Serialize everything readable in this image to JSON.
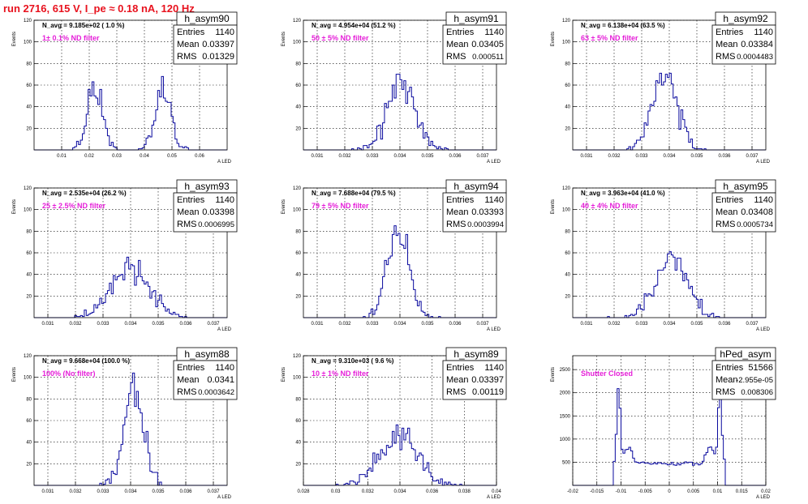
{
  "page_title": "run 2716,   615 V, I_pe ≈ 0.18 nA, 120 Hz",
  "chart_data": [
    {
      "type": "histogram",
      "name": "h_asym90",
      "entries": "1140",
      "mean": "0.03397",
      "rms": "0.01329",
      "navg": "N_avg = 9.185e+02 ( 1.0 %)",
      "filter": "1± 0.1% ND filter",
      "ylabel": "Events",
      "xlabel": "A_LED",
      "xlim": [
        0.0,
        0.07
      ],
      "ylim": [
        0,
        120
      ],
      "xticks": [
        "0.01",
        "0.02",
        "0.03",
        "0.04",
        "0.05",
        "0.06"
      ],
      "xtick_values": [
        0.01,
        0.02,
        0.03,
        0.04,
        0.05,
        0.06
      ],
      "yticks": [
        "20",
        "40",
        "60",
        "80",
        "100",
        "120"
      ],
      "ytick_values": [
        20,
        40,
        60,
        80,
        100,
        120
      ],
      "centers": [
        {
          "c": 0.0222,
          "s": 0.0028,
          "a": 38,
          "cnt": 570
        },
        {
          "c": 0.0468,
          "s": 0.0028,
          "a": 38,
          "cnt": 570
        }
      ],
      "seed": 11
    },
    {
      "type": "histogram",
      "name": "h_asym91",
      "entries": "1140",
      "mean": "0.03405",
      "rms": "0.000511",
      "navg": "N_avg = 4.954e+04 (51.2 %)",
      "filter": "50 ± 5% ND filter",
      "ylabel": "Events",
      "xlabel": "A_LED",
      "xlim": [
        0.0305,
        0.0375
      ],
      "ylim": [
        0,
        120
      ],
      "xticks": [
        "0.031",
        "0.032",
        "0.033",
        "0.034",
        "0.035",
        "0.036",
        "0.037"
      ],
      "xtick_values": [
        0.031,
        0.032,
        0.033,
        0.034,
        0.035,
        0.036,
        0.037
      ],
      "yticks": [
        "20",
        "40",
        "60",
        "80",
        "100",
        "120"
      ],
      "ytick_values": [
        20,
        40,
        60,
        80,
        100,
        120
      ],
      "centers": [
        {
          "c": 0.03405,
          "s": 0.000511,
          "a": 70,
          "cnt": 1140
        }
      ],
      "seed": 21
    },
    {
      "type": "histogram",
      "name": "h_asym92",
      "entries": "1140",
      "mean": "0.03384",
      "rms": "0.0004483",
      "navg": "N_avg = 6.138e+04 (63.5 %)",
      "filter": "63 ± 5% ND filter",
      "ylabel": "Events",
      "xlabel": "A_LED",
      "xlim": [
        0.0305,
        0.0375
      ],
      "ylim": [
        0,
        120
      ],
      "xticks": [
        "0.031",
        "0.032",
        "0.033",
        "0.034",
        "0.035",
        "0.036",
        "0.037"
      ],
      "xtick_values": [
        0.031,
        0.032,
        0.033,
        0.034,
        0.035,
        0.036,
        0.037
      ],
      "yticks": [
        "20",
        "40",
        "60",
        "80",
        "100",
        "120"
      ],
      "ytick_values": [
        20,
        40,
        60,
        80,
        100,
        120
      ],
      "centers": [
        {
          "c": 0.03384,
          "s": 0.000448,
          "a": 80,
          "cnt": 1140
        }
      ],
      "seed": 31
    },
    {
      "type": "histogram",
      "name": "h_asym93",
      "entries": "1140",
      "mean": "0.03398",
      "rms": "0.0006995",
      "navg": "N_avg = 2.535e+04 (26.2 %)",
      "filter": "25 ± 2.5% ND filter",
      "ylabel": "Events",
      "xlabel": "A_LED",
      "xlim": [
        0.0305,
        0.0375
      ],
      "ylim": [
        0,
        120
      ],
      "xticks": [
        "0.031",
        "0.032",
        "0.033",
        "0.034",
        "0.035",
        "0.036",
        "0.037"
      ],
      "xtick_values": [
        0.031,
        0.032,
        0.033,
        0.034,
        0.035,
        0.036,
        0.037
      ],
      "yticks": [
        "20",
        "40",
        "60",
        "80",
        "100",
        "120"
      ],
      "ytick_values": [
        20,
        40,
        60,
        80,
        100,
        120
      ],
      "centers": [
        {
          "c": 0.03398,
          "s": 0.0007,
          "a": 58,
          "cnt": 1140
        }
      ],
      "seed": 41
    },
    {
      "type": "histogram",
      "name": "h_asym94",
      "entries": "1140",
      "mean": "0.03393",
      "rms": "0.0003994",
      "navg": "N_avg = 7.688e+04 (79.5 %)",
      "filter": "79 ± 5% ND filter",
      "ylabel": "Events",
      "xlabel": "A_LED",
      "xlim": [
        0.0305,
        0.0375
      ],
      "ylim": [
        0,
        120
      ],
      "xticks": [
        "0.031",
        "0.032",
        "0.033",
        "0.034",
        "0.035",
        "0.036",
        "0.037"
      ],
      "xtick_values": [
        0.031,
        0.032,
        0.033,
        0.034,
        0.035,
        0.036,
        0.037
      ],
      "yticks": [
        "20",
        "40",
        "60",
        "80",
        "100",
        "120"
      ],
      "ytick_values": [
        20,
        40,
        60,
        80,
        100,
        120
      ],
      "centers": [
        {
          "c": 0.03393,
          "s": 0.0004,
          "a": 86,
          "cnt": 1140
        }
      ],
      "seed": 51
    },
    {
      "type": "histogram",
      "name": "h_asym95",
      "entries": "1140",
      "mean": "0.03408",
      "rms": "0.0005734",
      "navg": "N_avg = 3.963e+04 (41.0 %)",
      "filter": "40 ± 4% ND filter",
      "ylabel": "Events",
      "xlabel": "A_LED",
      "xlim": [
        0.0305,
        0.0375
      ],
      "ylim": [
        0,
        120
      ],
      "xticks": [
        "0.031",
        "0.032",
        "0.033",
        "0.034",
        "0.035",
        "0.036",
        "0.037"
      ],
      "xtick_values": [
        0.031,
        0.032,
        0.033,
        0.034,
        0.035,
        0.036,
        0.037
      ],
      "yticks": [
        "20",
        "40",
        "60",
        "80",
        "100",
        "120"
      ],
      "ytick_values": [
        20,
        40,
        60,
        80,
        100,
        120
      ],
      "centers": [
        {
          "c": 0.03408,
          "s": 0.00057,
          "a": 68,
          "cnt": 1140
        }
      ],
      "seed": 61
    },
    {
      "type": "histogram",
      "name": "h_asym88",
      "entries": "1140",
      "mean": "0.0341",
      "rms": "0.0003642",
      "navg": "N_avg = 9.668e+04 (100.0 %)",
      "filter": "100% (No filter)",
      "ylabel": "Events",
      "xlabel": "A_LED",
      "xlim": [
        0.0305,
        0.0375
      ],
      "ylim": [
        0,
        120
      ],
      "xticks": [
        "0.031",
        "0.032",
        "0.033",
        "0.034",
        "0.035",
        "0.036",
        "0.037"
      ],
      "xtick_values": [
        0.031,
        0.032,
        0.033,
        0.034,
        0.035,
        0.036,
        0.037
      ],
      "yticks": [
        "20",
        "40",
        "60",
        "80",
        "100",
        "120"
      ],
      "ytick_values": [
        20,
        40,
        60,
        80,
        100,
        120
      ],
      "centers": [
        {
          "c": 0.0341,
          "s": 0.000364,
          "a": 92,
          "cnt": 1140
        }
      ],
      "seed": 71
    },
    {
      "type": "histogram",
      "name": "h_asym89",
      "entries": "1140",
      "mean": "0.03397",
      "rms": "0.00119",
      "navg": "N_avg = 9.310e+03 ( 9.6 %)",
      "filter": "10 ± 1% ND filter",
      "ylabel": "Events",
      "xlabel": "A_LED",
      "xlim": [
        0.028,
        0.04
      ],
      "ylim": [
        0,
        120
      ],
      "xticks": [
        "0.028",
        "0.03",
        "0.032",
        "0.034",
        "0.036",
        "0.038",
        "0.04"
      ],
      "xtick_values": [
        0.028,
        0.03,
        0.032,
        0.034,
        0.036,
        0.038,
        0.04
      ],
      "yticks": [
        "20",
        "40",
        "60",
        "80",
        "100",
        "120"
      ],
      "ytick_values": [
        20,
        40,
        60,
        80,
        100,
        120
      ],
      "centers": [
        {
          "c": 0.03397,
          "s": 0.00119,
          "a": 58,
          "cnt": 1140
        }
      ],
      "seed": 81
    },
    {
      "type": "histogram",
      "name": "hPed_asym",
      "entries": "51566",
      "mean": "-2.955e-05",
      "rms": "0.008306",
      "navg": "",
      "filter": "Shutter Closed",
      "ylabel": "Events",
      "xlabel": "A_LED",
      "xlim": [
        -0.02,
        0.02
      ],
      "ylim": [
        0,
        2800
      ],
      "xticks": [
        "-0.02",
        "-0.015",
        "-0.01",
        "-0.005",
        "0",
        "0.005",
        "0.01",
        "0.015",
        "0.02"
      ],
      "xtick_values": [
        -0.02,
        -0.015,
        -0.01,
        -0.005,
        0,
        0.005,
        0.01,
        0.015,
        0.02
      ],
      "yticks": [
        "500",
        "1000",
        "1500",
        "2000",
        "2500"
      ],
      "ytick_values": [
        500,
        1000,
        1500,
        2000,
        2500
      ],
      "ped": true,
      "seed": 91
    }
  ]
}
